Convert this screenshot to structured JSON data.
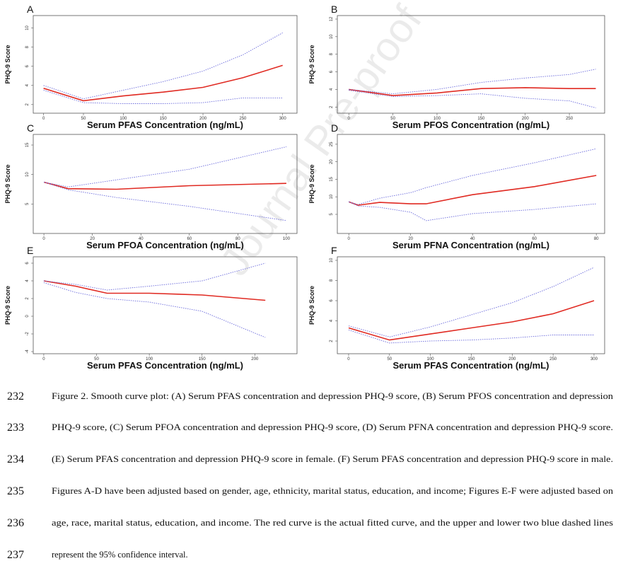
{
  "watermark": "Journal Pre-proof",
  "chart_data": [
    {
      "type": "line",
      "panel": "A",
      "x_label": "Serum PFAS Concentration (ng/mL)",
      "y_label": "PHQ-9 Score",
      "xlim": [
        -13,
        318
      ],
      "ylim": [
        1.1,
        11.3
      ],
      "xticks": [
        0,
        50,
        100,
        150,
        200,
        250,
        300
      ],
      "yticks": [
        2,
        4,
        6,
        8,
        10
      ],
      "x": [
        0,
        50,
        100,
        150,
        200,
        250,
        300
      ],
      "series": [
        {
          "color": "#e02a22",
          "style": "solid",
          "values": [
            3.7,
            2.4,
            2.9,
            3.3,
            3.8,
            4.8,
            6.1
          ]
        },
        {
          "color": "#6b6bdc",
          "style": "dashed",
          "values": [
            4.0,
            2.6,
            3.5,
            4.4,
            5.5,
            7.2,
            9.5
          ]
        },
        {
          "color": "#6b6bdc",
          "style": "dashed",
          "values": [
            3.5,
            2.2,
            2.1,
            2.1,
            2.2,
            2.7,
            2.7
          ]
        }
      ]
    },
    {
      "type": "line",
      "panel": "B",
      "x_label": "Serum PFOS Concentration (ng/mL)",
      "y_label": "PHQ-9 Score",
      "xlim": [
        -13,
        290
      ],
      "ylim": [
        1.3,
        12.4
      ],
      "xticks": [
        0,
        50,
        100,
        150,
        200,
        250
      ],
      "yticks": [
        2,
        4,
        6,
        8,
        10,
        12
      ],
      "x": [
        0,
        50,
        100,
        150,
        200,
        250,
        280
      ],
      "series": [
        {
          "color": "#e02a22",
          "style": "solid",
          "values": [
            4.0,
            3.3,
            3.6,
            4.1,
            4.2,
            4.1,
            4.1
          ]
        },
        {
          "color": "#6b6bdc",
          "style": "dashed",
          "values": [
            4.0,
            3.5,
            4.0,
            4.8,
            5.3,
            5.7,
            6.3
          ]
        },
        {
          "color": "#6b6bdc",
          "style": "dashed",
          "values": [
            3.9,
            3.2,
            3.3,
            3.5,
            3.0,
            2.7,
            1.9
          ]
        }
      ]
    },
    {
      "type": "line",
      "panel": "C",
      "x_label": "Serum PFOA Concentration (ng/mL)",
      "y_label": "PHQ-9 Score",
      "xlim": [
        -4.4,
        104.4
      ],
      "ylim": [
        0,
        16.8
      ],
      "xticks": [
        0,
        20,
        40,
        60,
        80,
        100
      ],
      "yticks": [
        5,
        10,
        15
      ],
      "x": [
        0,
        10,
        30,
        60,
        100
      ],
      "series": [
        {
          "color": "#e02a22",
          "style": "solid",
          "values": [
            8.7,
            7.6,
            7.5,
            8.1,
            8.5
          ]
        },
        {
          "color": "#6b6bdc",
          "style": "dashed",
          "values": [
            8.7,
            7.9,
            9.1,
            10.9,
            14.7
          ]
        },
        {
          "color": "#6b6bdc",
          "style": "dashed",
          "values": [
            8.7,
            7.4,
            6.1,
            4.6,
            2.2
          ]
        }
      ]
    },
    {
      "type": "line",
      "panel": "D",
      "x_label": "Serum PFNA Concentration (ng/mL)",
      "y_label": "PHQ-9 Score",
      "xlim": [
        -3.7,
        82.7
      ],
      "ylim": [
        -0.45,
        27.8
      ],
      "xticks": [
        0,
        20,
        40,
        60,
        80
      ],
      "yticks": [
        5,
        10,
        15,
        20,
        25
      ],
      "x": [
        0,
        3,
        10,
        20,
        25,
        40,
        60,
        80
      ],
      "series": [
        {
          "color": "#e02a22",
          "style": "solid",
          "values": [
            8.6,
            7.6,
            8.4,
            8.0,
            8.0,
            10.6,
            12.9,
            16.1
          ]
        },
        {
          "color": "#6b6bdc",
          "style": "dashed",
          "values": [
            8.6,
            7.8,
            9.6,
            11.2,
            12.6,
            16.1,
            19.7,
            23.7
          ]
        },
        {
          "color": "#6b6bdc",
          "style": "dashed",
          "values": [
            8.6,
            7.4,
            7.0,
            5.6,
            3.2,
            5.2,
            6.4,
            8.0
          ]
        }
      ]
    },
    {
      "type": "line",
      "panel": "E",
      "x_label": "Serum PFAS Concentration (ng/mL)",
      "y_label": "PHQ-9 Score",
      "xlim": [
        -10,
        240
      ],
      "ylim": [
        -4.24,
        6.72
      ],
      "xticks": [
        0,
        50,
        100,
        150,
        200
      ],
      "yticks": [
        -4,
        -2,
        0,
        2,
        4,
        6
      ],
      "x": [
        0,
        30,
        60,
        100,
        150,
        210
      ],
      "series": [
        {
          "color": "#e02a22",
          "style": "solid",
          "values": [
            4.0,
            3.4,
            2.6,
            2.6,
            2.4,
            1.8
          ]
        },
        {
          "color": "#6b6bdc",
          "style": "dashed",
          "values": [
            4.0,
            3.6,
            2.96,
            3.4,
            4.0,
            6.0
          ]
        },
        {
          "color": "#6b6bdc",
          "style": "dashed",
          "values": [
            3.8,
            2.7,
            2.0,
            1.6,
            0.56,
            -2.4
          ]
        }
      ]
    },
    {
      "type": "line",
      "panel": "F",
      "x_label": "Serum PFAS Concentration (ng/mL)",
      "y_label": "PHQ-9 Score",
      "xlim": [
        -13.8,
        313
      ],
      "ylim": [
        0.74,
        10.35
      ],
      "xticks": [
        0,
        50,
        100,
        150,
        200,
        250,
        300
      ],
      "yticks": [
        2,
        4,
        6,
        8,
        10
      ],
      "x": [
        0,
        50,
        100,
        150,
        200,
        250,
        300
      ],
      "series": [
        {
          "color": "#e02a22",
          "style": "solid",
          "values": [
            3.3,
            2.1,
            2.7,
            3.3,
            3.9,
            4.7,
            6.0
          ]
        },
        {
          "color": "#6b6bdc",
          "style": "dashed",
          "values": [
            3.5,
            2.4,
            3.4,
            4.6,
            5.8,
            7.4,
            9.3
          ]
        },
        {
          "color": "#6b6bdc",
          "style": "dashed",
          "values": [
            3.1,
            1.8,
            2.0,
            2.1,
            2.3,
            2.6,
            2.6
          ]
        }
      ]
    }
  ],
  "caption": {
    "lines": [
      {
        "number": 232,
        "text": "Figure 2. Smooth curve plot: (A) Serum PFAS concentration and depression PHQ-9 score, (B) Serum PFOS concentration and depression"
      },
      {
        "number": 233,
        "text": "PHQ-9 score, (C) Serum PFOA concentration and depression PHQ-9 score, (D) Serum PFNA concentration and depression PHQ-9 score."
      },
      {
        "number": 234,
        "text": "(E) Serum PFAS concentration and depression PHQ-9 score in female. (F) Serum PFAS concentration and depression PHQ-9 score in male."
      },
      {
        "number": 235,
        "text": "Figures A-D have been adjusted based on gender, age, ethnicity, marital status, education, and income; Figures E-F were adjusted based on"
      },
      {
        "number": 236,
        "text": "age, race, marital status, education, and income.  The red curve is the actual fitted curve, and the upper and lower two blue dashed lines"
      },
      {
        "number": 237,
        "text": "represent the 95% confidence interval."
      }
    ]
  }
}
